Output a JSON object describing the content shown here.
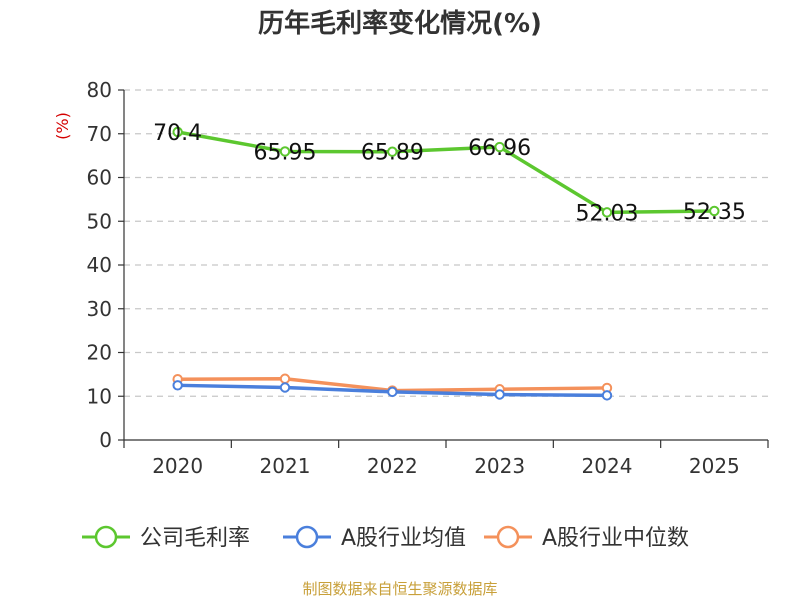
{
  "chart_data": {
    "type": "line",
    "title": "历年毛利率变化情况(%)",
    "ylabel": "(%)",
    "xlabel": "",
    "ylim": [
      0,
      80
    ],
    "yticks": [
      0,
      10,
      20,
      30,
      40,
      50,
      60,
      70,
      80
    ],
    "categories": [
      "2020",
      "2021",
      "2022",
      "2023",
      "2024",
      "2025"
    ],
    "grid": true,
    "legend_position": "bottom",
    "series": [
      {
        "name": "公司毛利率",
        "color": "#5cc72f",
        "values": [
          70.4,
          65.95,
          65.89,
          66.96,
          52.03,
          52.35
        ],
        "labels": [
          "70.4",
          "65.95",
          "65.89",
          "66.96",
          "52.03",
          "52.35"
        ]
      },
      {
        "name": "A股行业均值",
        "color": "#4a7fdc",
        "values": [
          12.5,
          12.0,
          11.0,
          10.4,
          10.2,
          null
        ]
      },
      {
        "name": "A股行业中位数",
        "color": "#f4915b",
        "values": [
          13.9,
          14.0,
          11.3,
          11.6,
          11.9,
          null
        ]
      }
    ],
    "source": "制图数据来自恒生聚源数据库"
  }
}
